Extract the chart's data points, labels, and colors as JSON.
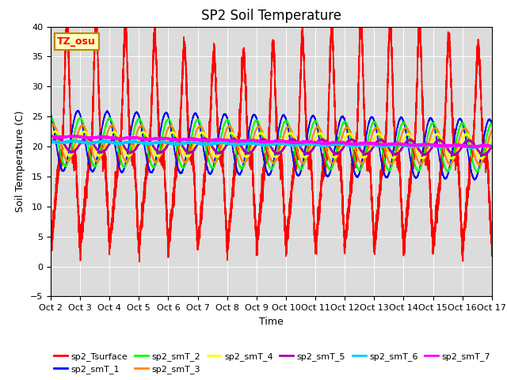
{
  "title": "SP2 Soil Temperature",
  "ylabel": "Soil Temperature (C)",
  "xlabel": "Time",
  "ylim": [
    -5,
    40
  ],
  "xtick_labels": [
    "Oct 2",
    "Oct 3",
    "Oct 4",
    "Oct 5",
    "Oct 6",
    "Oct 7",
    "Oct 8",
    "Oct 9",
    "Oct 10",
    "Oct 11",
    "Oct 12",
    "Oct 13",
    "Oct 14",
    "Oct 15",
    "Oct 16",
    "Oct 17"
  ],
  "annotation_text": "TZ_osu",
  "annotation_box_facecolor": "#FFFFC0",
  "annotation_box_edgecolor": "#BB8800",
  "bg_color": "#DCDCDC",
  "series_names": [
    "sp2_Tsurface",
    "sp2_smT_1",
    "sp2_smT_2",
    "sp2_smT_3",
    "sp2_smT_4",
    "sp2_smT_5",
    "sp2_smT_6",
    "sp2_smT_7"
  ],
  "series_colors": [
    "#FF0000",
    "#0000FF",
    "#00FF00",
    "#FF8800",
    "#FFFF00",
    "#AA00AA",
    "#00CCFF",
    "#FF00FF"
  ],
  "series_lw": [
    1.2,
    1.2,
    1.2,
    1.2,
    1.2,
    1.5,
    1.8,
    1.8
  ],
  "title_fontsize": 12,
  "axis_label_fontsize": 9,
  "tick_fontsize": 8,
  "legend_fontsize": 8,
  "num_points": 7200
}
